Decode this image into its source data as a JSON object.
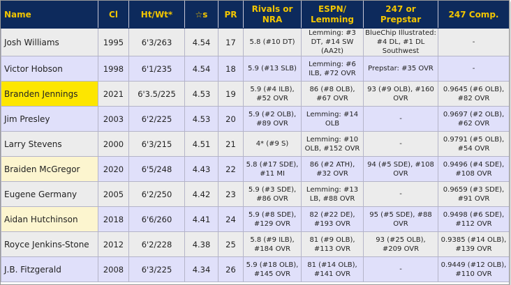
{
  "table": {
    "headers": [
      {
        "label": "Name",
        "key": "name"
      },
      {
        "label": "Cl",
        "key": "cl"
      },
      {
        "label": "Ht/Wt*",
        "key": "ht"
      },
      {
        "label": "☆s",
        "key": "stars"
      },
      {
        "label": "PR",
        "key": "pr"
      },
      {
        "label": "Rivals or NRA",
        "key": "rivals"
      },
      {
        "label": "ESPN/ Lemming",
        "key": "espn"
      },
      {
        "label": "247 or Prepstar",
        "key": "p247"
      },
      {
        "label": "247 Comp.",
        "key": "c247"
      }
    ],
    "highlight_colors": {
      "yellow": "#fde600",
      "cream": "#fcf5cf",
      "header_bg": "#0d2a5c",
      "header_text": "#f2c500"
    },
    "rows": [
      {
        "name": "Josh Williams",
        "highlight": "",
        "cl": "1995",
        "ht": "6'3/263",
        "stars": "4.54",
        "pr": "17",
        "rivals": "5.8 (#10 DT)",
        "espn": "Lemming: #3 DT, #14 SW (AA2t)",
        "p247": "BlueChip Illustrated: #4 DL, #1 DL Southwest",
        "c247": "-"
      },
      {
        "name": "Victor Hobson",
        "highlight": "",
        "cl": "1998",
        "ht": "6'1/235",
        "stars": "4.54",
        "pr": "18",
        "rivals": "5.9 (#13 SLB)",
        "espn": "Lemming: #6 ILB, #72 OVR",
        "p247": "Prepstar: #35 OVR",
        "c247": "-"
      },
      {
        "name": "Branden Jennings",
        "highlight": "yellow",
        "cl": "2021",
        "ht": "6'3.5/225",
        "stars": "4.53",
        "pr": "19",
        "rivals": "5.9 (#4 ILB), #52 OVR",
        "espn": "86 (#8 OLB), #67 OVR",
        "p247": "93 (#9 OLB), #160 OVR",
        "c247": "0.9645 (#6 OLB), #82 OVR"
      },
      {
        "name": "Jim Presley",
        "highlight": "",
        "cl": "2003",
        "ht": "6'2/225",
        "stars": "4.53",
        "pr": "20",
        "rivals": "5.9 (#2 OLB), #89 OVR",
        "espn": "Lemming: #14 OLB",
        "p247": "-",
        "c247": "0.9697 (#2 OLB), #62 OVR"
      },
      {
        "name": "Larry Stevens",
        "highlight": "",
        "cl": "2000",
        "ht": "6'3/215",
        "stars": "4.51",
        "pr": "21",
        "rivals": "4* (#9 S)",
        "espn": "Lemming: #10 OLB, #152 OVR",
        "p247": "-",
        "c247": "0.9791 (#5 OLB), #54 OVR"
      },
      {
        "name": "Braiden McGregor",
        "highlight": "cream",
        "cl": "2020",
        "ht": "6'5/248",
        "stars": "4.43",
        "pr": "22",
        "rivals": "5.8 (#17 SDE), #11 MI",
        "espn": "86 (#2 ATH), #32 OVR",
        "p247": "94 (#5 SDE), #108 OVR",
        "c247": "0.9496 (#4 SDE), #108 OVR"
      },
      {
        "name": "Eugene Germany",
        "highlight": "",
        "cl": "2005",
        "ht": "6'2/250",
        "stars": "4.42",
        "pr": "23",
        "rivals": "5.9 (#3 SDE), #86 OVR",
        "espn": "Lemming: #13 LB, #88 OVR",
        "p247": "-",
        "c247": "0.9659 (#3 SDE), #91 OVR"
      },
      {
        "name": "Aidan Hutchinson",
        "highlight": "cream",
        "cl": "2018",
        "ht": "6'6/260",
        "stars": "4.41",
        "pr": "24",
        "rivals": "5.9 (#8 SDE), #129 OVR",
        "espn": "82 (#22 DE), #193 OVR",
        "p247": "95 (#5 SDE), #88 OVR",
        "c247": "0.9498 (#6 SDE), #112 OVR"
      },
      {
        "name": "Royce Jenkins-Stone",
        "highlight": "",
        "cl": "2012",
        "ht": "6'2/228",
        "stars": "4.38",
        "pr": "25",
        "rivals": "5.8 (#9 ILB), #184 OVR",
        "espn": "81 (#9 OLB), #113 OVR",
        "p247": "93 (#25 OLB), #209 OVR",
        "c247": "0.9385 (#14 OLB), #139 OVR"
      },
      {
        "name": "J.B. Fitzgerald",
        "highlight": "",
        "cl": "2008",
        "ht": "6'3/225",
        "stars": "4.34",
        "pr": "26",
        "rivals": "5.9 (#18 OLB), #145 OVR",
        "espn": "81 (#14 OLB), #141 OVR",
        "p247": "-",
        "c247": "0.9449 (#12 OLB), #110 OVR"
      }
    ]
  }
}
